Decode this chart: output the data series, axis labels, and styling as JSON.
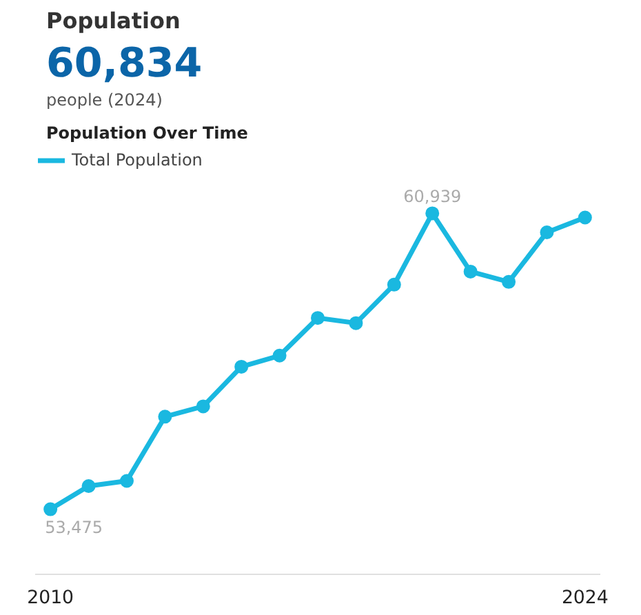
{
  "chart_data": [
    {
      "type": "other",
      "title": "Population",
      "annotations": [
        "60,834",
        "people (2024)"
      ],
      "colors": [
        "#0b65a8"
      ]
    },
    {
      "type": "line",
      "title": "Population Over Time",
      "x": [
        2010,
        2011,
        2012,
        2013,
        2014,
        2015,
        2016,
        2017,
        2018,
        2019,
        2020,
        2021,
        2022,
        2023,
        2024
      ],
      "series": [
        {
          "name": "Total Population",
          "color": "#1ab8e0",
          "values": [
            53475,
            54060,
            54190,
            55810,
            56070,
            57070,
            57350,
            58300,
            58170,
            59140,
            60939,
            59470,
            59210,
            60460,
            60834
          ],
          "value_labels": [
            "53,475",
            null,
            null,
            null,
            null,
            null,
            null,
            null,
            null,
            null,
            "60,939",
            null,
            null,
            null,
            null
          ]
        }
      ],
      "xlim": [
        2009.6,
        2024.4
      ],
      "xticks": [
        2010,
        2024
      ],
      "legend": "top left",
      "marker": "circle",
      "line_style": "solid",
      "tick_labels": "x"
    }
  ]
}
